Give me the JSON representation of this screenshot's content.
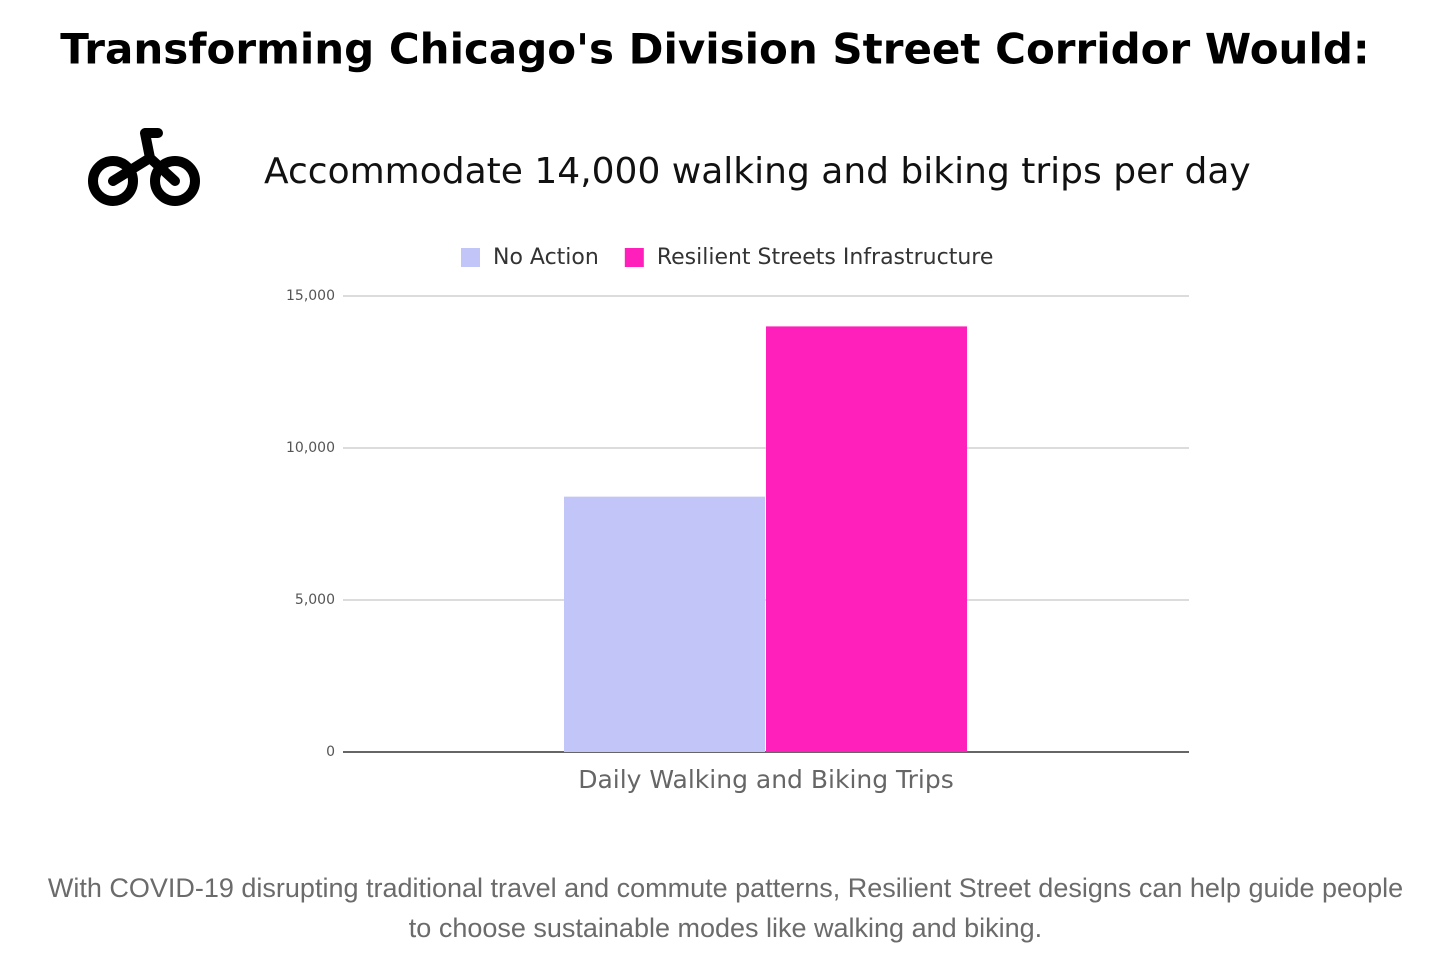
{
  "chart_data": {
    "type": "bar",
    "title": "Transforming Chicago's Division Street Corridor Would:",
    "subtitle": "Accommodate 14,000 walking and biking trips per day",
    "categories": [
      "Daily Walking and Biking Trips"
    ],
    "series": [
      {
        "name": "No Action",
        "color": "#c2c5f7",
        "values": [
          8400
        ]
      },
      {
        "name": "Resilient Streets Infrastructure",
        "color": "#ff1fbb",
        "values": [
          14000
        ]
      }
    ],
    "ylim": [
      0,
      15000
    ],
    "yticks": [
      0,
      {
        "value": 5000,
        "label": "5,000"
      },
      {
        "value": 10000,
        "label": "10,000"
      },
      {
        "value": 15000,
        "label": "15,000"
      }
    ],
    "grid": true,
    "legend": "top"
  },
  "caption": "With COVID-19 disrupting traditional travel and commute patterns, Resilient Street designs can help guide people to choose sustainable modes like walking and biking."
}
